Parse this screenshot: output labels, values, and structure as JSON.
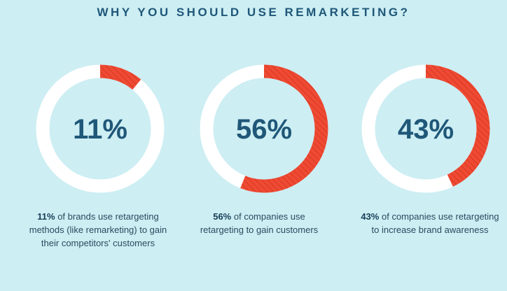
{
  "title": "WHY YOU SHOULD USE REMARKETING?",
  "colors": {
    "background": "#cdeef3",
    "ring_track": "#ffffff",
    "ring_fill": "#ee4a34",
    "text_dark": "#1f5778"
  },
  "chart_data": {
    "type": "pie",
    "title": "WHY YOU SHOULD USE REMARKETING?",
    "series": [
      {
        "label": "11%",
        "value": 11
      },
      {
        "label": "56%",
        "value": 56
      },
      {
        "label": "43%",
        "value": 43
      }
    ]
  },
  "captions": [
    {
      "bold": "11%",
      "rest": " of brands use retargeting methods (like remarketing) to gain their competitors' customers"
    },
    {
      "bold": "56%",
      "rest": " of companies use retargeting to gain customers"
    },
    {
      "bold": "43%",
      "rest": " of companies use retargeting to increase brand awareness"
    }
  ]
}
